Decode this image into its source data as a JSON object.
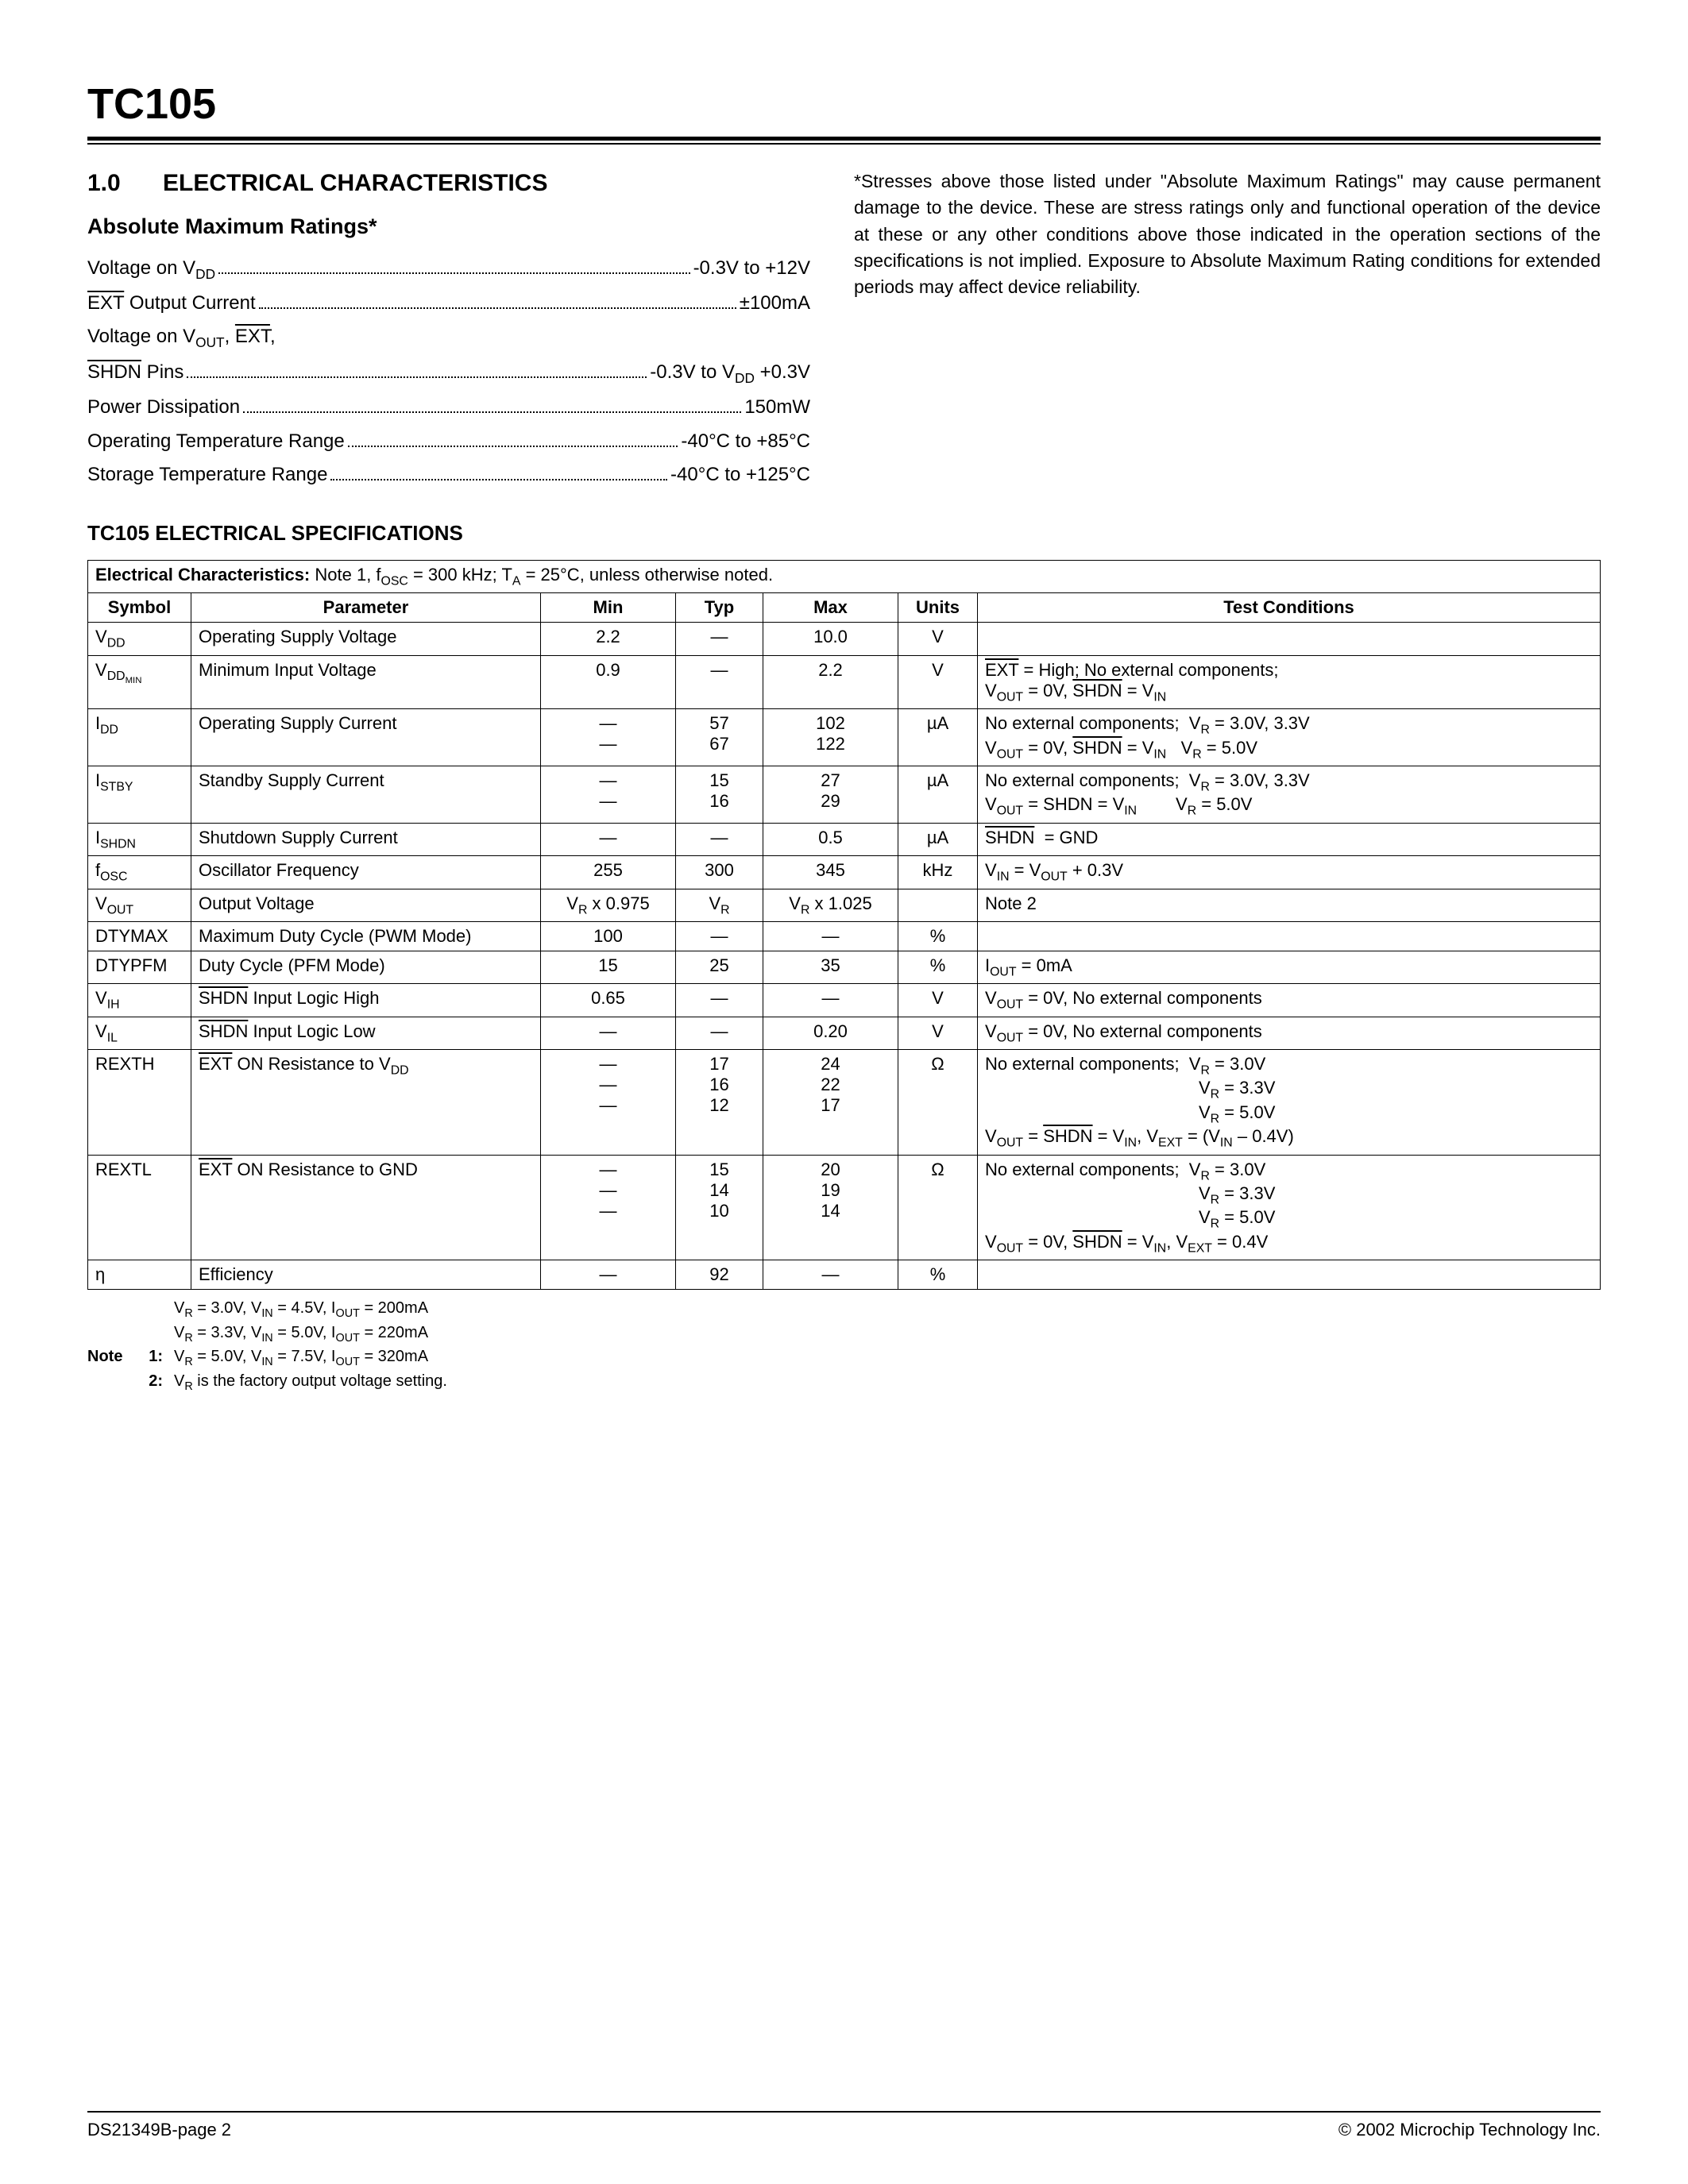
{
  "part": "TC105",
  "section": {
    "num": "1.0",
    "title": "ELECTRICAL CHARACTERISTICS"
  },
  "amr_title": "Absolute Maximum Ratings*",
  "amr": [
    {
      "label_html": "Voltage on V<sub>DD</sub>",
      "value": "-0.3V to +12V"
    },
    {
      "label_html": "<span class='overline'>EXT</span> Output Current",
      "value": "±100mA"
    },
    {
      "label_html": "Voltage on V<sub>OUT</sub>, <span class='overline'>EXT</span>,",
      "value": ""
    },
    {
      "label_html": "<span class='overline'>SHDN</span> Pins",
      "value_html": "-0.3V to V<sub>DD</sub> +0.3V"
    },
    {
      "label_html": "Power Dissipation",
      "value": "150mW"
    },
    {
      "label_html": "Operating Temperature Range",
      "value": "-40°C to +85°C"
    },
    {
      "label_html": "Storage Temperature Range",
      "value": "-40°C to +125°C"
    }
  ],
  "disclaimer": "*Stresses above those listed under \"Absolute Maximum Ratings\" may cause permanent damage to the device. These are stress ratings only and functional operation of the device at these or any other conditions above those indicated in the operation sections of the specifications is not implied. Exposure to Absolute Maximum Rating conditions for extended periods may affect device reliability.",
  "spec_title": "TC105 ELECTRICAL SPECIFICATIONS",
  "spec_caption_html": "<b>Electrical Characteristics:</b> Note 1, f<sub>OSC</sub> = 300 kHz; T<sub>A</sub> = 25°C, unless otherwise noted.",
  "columns": [
    "Symbol",
    "Parameter",
    "Min",
    "Typ",
    "Max",
    "Units",
    "Test Conditions"
  ],
  "col_widths": [
    "130px",
    "440px",
    "170px",
    "110px",
    "170px",
    "100px",
    "auto"
  ],
  "rows": [
    {
      "sym": "V<sub>DD</sub>",
      "param": "Operating Supply Voltage",
      "min": "2.2",
      "typ": "—",
      "max": "10.0",
      "units": "V",
      "tc": ""
    },
    {
      "sym": "V<sub>DD<sub>MIN</sub></sub>",
      "param": "Minimum Input Voltage",
      "min": "0.9",
      "typ": "—",
      "max": "2.2",
      "units": "V",
      "tc": "<span class='overline'>EXT</span> = High; No external components;<br>V<sub>OUT</sub> = 0V, <span class='overline'>SHDN</span> = V<sub>IN</sub>"
    },
    {
      "sym": "I<sub>DD</sub>",
      "param": "Operating Supply Current",
      "min": "—<br>—",
      "typ": "57<br>67",
      "max": "102<br>122",
      "units": "µA",
      "tc": "No external components;&nbsp; V<sub>R</sub> = 3.0V, 3.3V<br>V<sub>OUT</sub> = 0V, <span class='overline'>SHDN</span> = V<sub>IN</sub>&nbsp;&nbsp;&nbsp;V<sub>R</sub> = 5.0V"
    },
    {
      "sym": "I<sub>STBY</sub>",
      "param": "Standby Supply Current",
      "min": "—<br>—",
      "typ": "15<br>16",
      "max": "27<br>29",
      "units": "µA",
      "tc": "No external components;&nbsp; V<sub>R</sub> = 3.0V, 3.3V<br>V<sub>OUT</sub> = SHDN = V<sub>IN</sub>&nbsp;&nbsp;&nbsp;&nbsp;&nbsp;&nbsp;&nbsp;&nbsp;V<sub>R</sub> = 5.0V"
    },
    {
      "sym": "I<sub>SHDN</sub>",
      "param": "Shutdown Supply Current",
      "min": "—",
      "typ": "—",
      "max": "0.5",
      "units": "µA",
      "tc": "<span class='overline'>SHDN</span>&nbsp; = GND"
    },
    {
      "sym": "f<sub>OSC</sub>",
      "param": "Oscillator Frequency",
      "min": "255",
      "typ": "300",
      "max": "345",
      "units": "kHz",
      "tc": "V<sub>IN</sub> = V<sub>OUT</sub> + 0.3V"
    },
    {
      "sym": "V<sub>OUT</sub>",
      "param": "Output Voltage",
      "min": "V<sub>R</sub> x 0.975",
      "typ": "V<sub>R</sub>",
      "max": "V<sub>R</sub> x 1.025",
      "units": "",
      "tc": "Note 2"
    },
    {
      "sym": "DTYMAX",
      "param": "Maximum Duty Cycle (PWM Mode)",
      "min": "100",
      "typ": "—",
      "max": "—",
      "units": "%",
      "tc": ""
    },
    {
      "sym": "DTYPFM",
      "param": "Duty Cycle (PFM Mode)",
      "min": "15",
      "typ": "25",
      "max": "35",
      "units": "%",
      "tc": "I<sub>OUT</sub> = 0mA"
    },
    {
      "sym": "V<sub>IH</sub>",
      "param": "<span class='overline'>SHDN</span> Input Logic High",
      "min": "0.65",
      "typ": "—",
      "max": "—",
      "units": "V",
      "tc": "V<sub>OUT</sub> = 0V, No external components"
    },
    {
      "sym": "V<sub>IL</sub>",
      "param": "<span class='overline'>SHDN</span> Input Logic Low",
      "min": "—",
      "typ": "—",
      "max": "0.20",
      "units": "V",
      "tc": "V<sub>OUT</sub> = 0V, No external components"
    },
    {
      "sym": "REXTH",
      "param": "<span class='overline'>EXT</span> ON Resistance to V<sub>DD</sub>",
      "min": "—<br>—<br>—",
      "typ": "17<br>16<br>12",
      "max": "24<br>22<br>17",
      "units": "Ω",
      "tc": "No external components;&nbsp; V<sub>R</sub> = 3.0V<br>&nbsp;&nbsp;&nbsp;&nbsp;&nbsp;&nbsp;&nbsp;&nbsp;&nbsp;&nbsp;&nbsp;&nbsp;&nbsp;&nbsp;&nbsp;&nbsp;&nbsp;&nbsp;&nbsp;&nbsp;&nbsp;&nbsp;&nbsp;&nbsp;&nbsp;&nbsp;&nbsp;&nbsp;&nbsp;&nbsp;&nbsp;&nbsp;&nbsp;&nbsp;&nbsp;&nbsp;&nbsp;&nbsp;&nbsp;&nbsp;&nbsp;&nbsp;&nbsp;&nbsp;V<sub>R</sub> = 3.3V<br>&nbsp;&nbsp;&nbsp;&nbsp;&nbsp;&nbsp;&nbsp;&nbsp;&nbsp;&nbsp;&nbsp;&nbsp;&nbsp;&nbsp;&nbsp;&nbsp;&nbsp;&nbsp;&nbsp;&nbsp;&nbsp;&nbsp;&nbsp;&nbsp;&nbsp;&nbsp;&nbsp;&nbsp;&nbsp;&nbsp;&nbsp;&nbsp;&nbsp;&nbsp;&nbsp;&nbsp;&nbsp;&nbsp;&nbsp;&nbsp;&nbsp;&nbsp;&nbsp;&nbsp;V<sub>R</sub> = 5.0V<br>V<sub>OUT</sub> = <span class='overline'>SHDN</span> = V<sub>IN</sub>, V<sub>EXT</sub> = (V<sub>IN</sub> – 0.4V)"
    },
    {
      "sym": "REXTL",
      "param": "<span class='overline'>EXT</span> ON Resistance to GND",
      "min": "—<br>—<br>—",
      "typ": "15<br>14<br>10",
      "max": "20<br>19<br>14",
      "units": "Ω",
      "tc": "No external components;&nbsp; V<sub>R</sub> = 3.0V<br>&nbsp;&nbsp;&nbsp;&nbsp;&nbsp;&nbsp;&nbsp;&nbsp;&nbsp;&nbsp;&nbsp;&nbsp;&nbsp;&nbsp;&nbsp;&nbsp;&nbsp;&nbsp;&nbsp;&nbsp;&nbsp;&nbsp;&nbsp;&nbsp;&nbsp;&nbsp;&nbsp;&nbsp;&nbsp;&nbsp;&nbsp;&nbsp;&nbsp;&nbsp;&nbsp;&nbsp;&nbsp;&nbsp;&nbsp;&nbsp;&nbsp;&nbsp;&nbsp;&nbsp;V<sub>R</sub> = 3.3V<br>&nbsp;&nbsp;&nbsp;&nbsp;&nbsp;&nbsp;&nbsp;&nbsp;&nbsp;&nbsp;&nbsp;&nbsp;&nbsp;&nbsp;&nbsp;&nbsp;&nbsp;&nbsp;&nbsp;&nbsp;&nbsp;&nbsp;&nbsp;&nbsp;&nbsp;&nbsp;&nbsp;&nbsp;&nbsp;&nbsp;&nbsp;&nbsp;&nbsp;&nbsp;&nbsp;&nbsp;&nbsp;&nbsp;&nbsp;&nbsp;&nbsp;&nbsp;&nbsp;&nbsp;V<sub>R</sub> = 5.0V<br>V<sub>OUT</sub> = 0V, <span class='overline'>SHDN</span> = V<sub>IN</sub>, V<sub>EXT</sub> = 0.4V"
    },
    {
      "sym": "η",
      "param": "Efficiency",
      "min": "—",
      "typ": "92",
      "max": "—",
      "units": "%",
      "tc": ""
    }
  ],
  "notes": [
    {
      "label": "Note",
      "num": "1:",
      "body_html": "V<sub>R</sub> = 3.0V, V<sub>IN</sub> = 4.5V, I<sub>OUT</sub> = 200mA<br>V<sub>R</sub> = 3.3V, V<sub>IN</sub> = 5.0V, I<sub>OUT</sub> = 220mA<br>V<sub>R</sub> = 5.0V, V<sub>IN</sub> = 7.5V, I<sub>OUT</sub> = 320mA"
    },
    {
      "label": "",
      "num": "2:",
      "body_html": "V<sub>R</sub> is the factory output voltage setting."
    }
  ],
  "footer": {
    "left": "DS21349B-page 2",
    "right": "© 2002 Microchip Technology Inc."
  },
  "style": {
    "text_color": "#000000",
    "bg": "#ffffff",
    "border": "#000000",
    "font_body": 24,
    "font_table": 22,
    "font_notes": 20
  }
}
